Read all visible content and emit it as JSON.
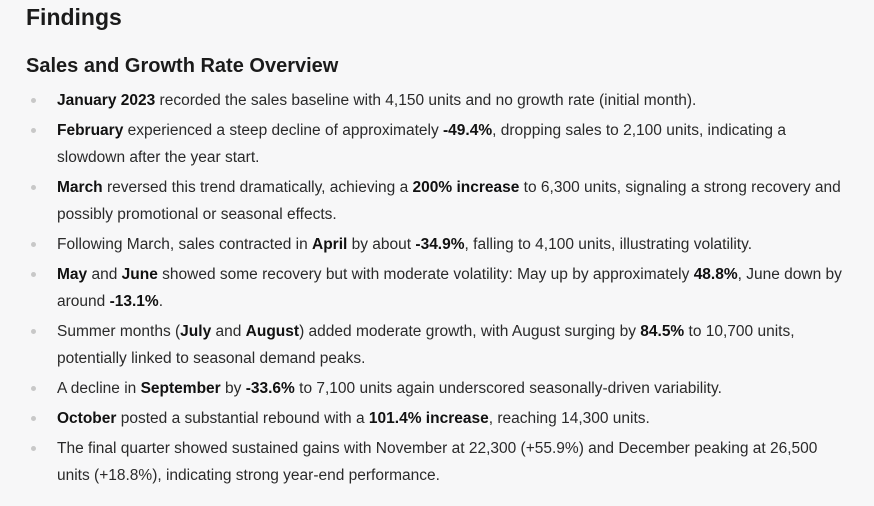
{
  "heading": "Findings",
  "subheading": "Sales and Growth Rate Overview",
  "items": [
    {
      "segments": [
        {
          "t": "January 2023",
          "b": true
        },
        {
          "t": " recorded the sales baseline with 4,150 units and no growth rate (initial month).",
          "b": false
        }
      ]
    },
    {
      "segments": [
        {
          "t": "February",
          "b": true
        },
        {
          "t": " experienced a steep decline of approximately ",
          "b": false
        },
        {
          "t": "-49.4%",
          "b": true
        },
        {
          "t": ", dropping sales to 2,100 units, indicating a slowdown after the year start.",
          "b": false
        }
      ]
    },
    {
      "segments": [
        {
          "t": "March",
          "b": true
        },
        {
          "t": " reversed this trend dramatically, achieving a ",
          "b": false
        },
        {
          "t": "200% increase",
          "b": true
        },
        {
          "t": " to 6,300 units, signaling a strong recovery and possibly promotional or seasonal effects.",
          "b": false
        }
      ]
    },
    {
      "segments": [
        {
          "t": "Following March, sales contracted in ",
          "b": false
        },
        {
          "t": "April",
          "b": true
        },
        {
          "t": " by about ",
          "b": false
        },
        {
          "t": "-34.9%",
          "b": true
        },
        {
          "t": ", falling to 4,100 units, illustrating volatility.",
          "b": false
        }
      ]
    },
    {
      "segments": [
        {
          "t": "May",
          "b": true
        },
        {
          "t": " and ",
          "b": false
        },
        {
          "t": "June",
          "b": true
        },
        {
          "t": " showed some recovery but with moderate volatility: May up by approximately ",
          "b": false
        },
        {
          "t": "48.8%",
          "b": true
        },
        {
          "t": ", June down by around ",
          "b": false
        },
        {
          "t": "-13.1%",
          "b": true
        },
        {
          "t": ".",
          "b": false
        }
      ]
    },
    {
      "segments": [
        {
          "t": "Summer months (",
          "b": false
        },
        {
          "t": "July",
          "b": true
        },
        {
          "t": " and ",
          "b": false
        },
        {
          "t": "August",
          "b": true
        },
        {
          "t": ") added moderate growth, with August surging by ",
          "b": false
        },
        {
          "t": "84.5%",
          "b": true
        },
        {
          "t": " to 10,700 units, potentially linked to seasonal demand peaks.",
          "b": false
        }
      ]
    },
    {
      "segments": [
        {
          "t": "A decline in ",
          "b": false
        },
        {
          "t": "September",
          "b": true
        },
        {
          "t": " by ",
          "b": false
        },
        {
          "t": "-33.6%",
          "b": true
        },
        {
          "t": " to 7,100 units again underscored seasonally-driven variability.",
          "b": false
        }
      ]
    },
    {
      "segments": [
        {
          "t": "October",
          "b": true
        },
        {
          "t": " posted a substantial rebound with a ",
          "b": false
        },
        {
          "t": "101.4% increase",
          "b": true
        },
        {
          "t": ", reaching 14,300 units.",
          "b": false
        }
      ]
    },
    {
      "segments": [
        {
          "t": "The final quarter showed sustained gains with November at 22,300 (+55.9%) and December peaking at 26,500 units (+18.8%), indicating strong year-end performance.",
          "b": false
        }
      ]
    }
  ]
}
